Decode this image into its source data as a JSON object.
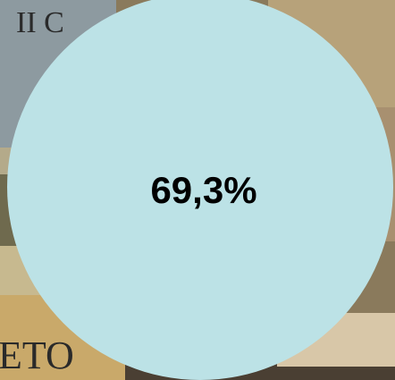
{
  "badge": {
    "label": "69,3%"
  },
  "background": {
    "spine_texts": [
      "II C",
      "ETO"
    ]
  }
}
